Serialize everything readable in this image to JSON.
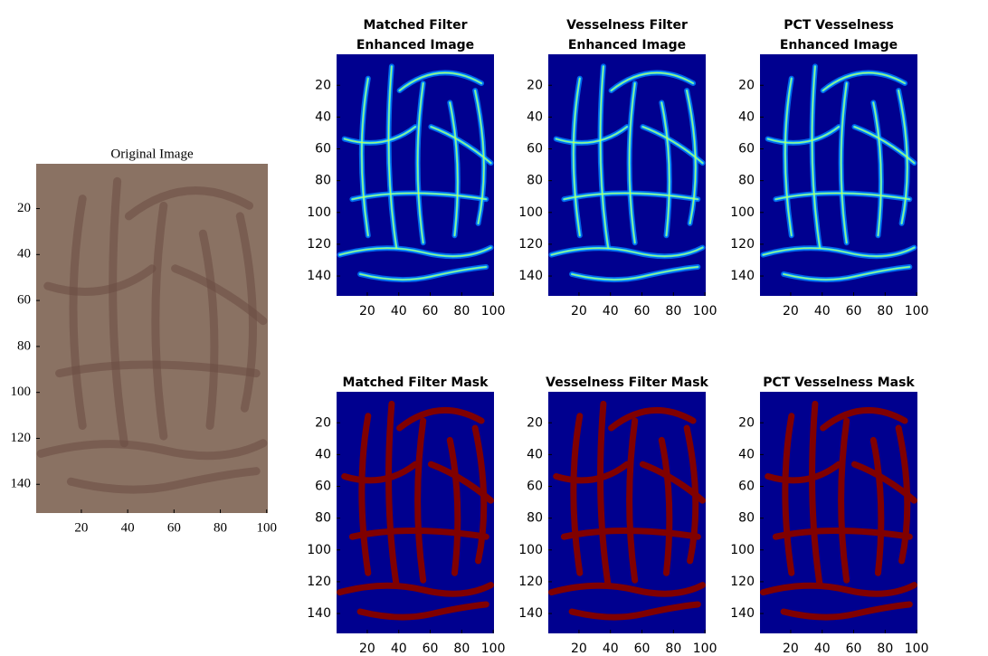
{
  "chart_data": [
    {
      "type": "image",
      "style": "photo",
      "title": [
        "Original Image"
      ],
      "xlim": [
        0.5,
        100.5
      ],
      "ylim": [
        0.5,
        152.5
      ],
      "xticks": [
        20,
        40,
        60,
        80,
        100
      ],
      "yticks": [
        20,
        40,
        60,
        80,
        100,
        120,
        140
      ]
    },
    {
      "type": "image",
      "style": "enhanced",
      "title": [
        "Matched Filter",
        "Enhanced Image"
      ],
      "xlim": [
        0.5,
        100.5
      ],
      "ylim": [
        0.5,
        152.5
      ],
      "xticks": [
        20,
        40,
        60,
        80,
        100
      ],
      "yticks": [
        20,
        40,
        60,
        80,
        100,
        120,
        140
      ]
    },
    {
      "type": "image",
      "style": "enhanced",
      "title": [
        "Vesselness Filter",
        "Enhanced Image"
      ],
      "xlim": [
        0.5,
        100.5
      ],
      "ylim": [
        0.5,
        152.5
      ],
      "xticks": [
        20,
        40,
        60,
        80,
        100
      ],
      "yticks": [
        20,
        40,
        60,
        80,
        100,
        120,
        140
      ]
    },
    {
      "type": "image",
      "style": "enhanced",
      "title": [
        "PCT Vesselness",
        "Enhanced Image"
      ],
      "xlim": [
        0.5,
        100.5
      ],
      "ylim": [
        0.5,
        152.5
      ],
      "xticks": [
        20,
        40,
        60,
        80,
        100
      ],
      "yticks": [
        20,
        40,
        60,
        80,
        100,
        120,
        140
      ]
    },
    {
      "type": "image",
      "style": "mask",
      "title": [
        "Matched Filter Mask"
      ],
      "xlim": [
        0.5,
        100.5
      ],
      "ylim": [
        0.5,
        152.5
      ],
      "xticks": [
        20,
        40,
        60,
        80,
        100
      ],
      "yticks": [
        20,
        40,
        60,
        80,
        100,
        120,
        140
      ]
    },
    {
      "type": "image",
      "style": "mask",
      "title": [
        "Vesselness Filter Mask"
      ],
      "xlim": [
        0.5,
        100.5
      ],
      "ylim": [
        0.5,
        152.5
      ],
      "xticks": [
        20,
        40,
        60,
        80,
        100
      ],
      "yticks": [
        20,
        40,
        60,
        80,
        100,
        120,
        140
      ]
    },
    {
      "type": "image",
      "style": "mask",
      "title": [
        "PCT Vesselness Mask"
      ],
      "xlim": [
        0.5,
        100.5
      ],
      "ylim": [
        0.5,
        152.5
      ],
      "xticks": [
        20,
        40,
        60,
        80,
        100
      ],
      "yticks": [
        20,
        40,
        60,
        80,
        100,
        120,
        140
      ]
    }
  ]
}
